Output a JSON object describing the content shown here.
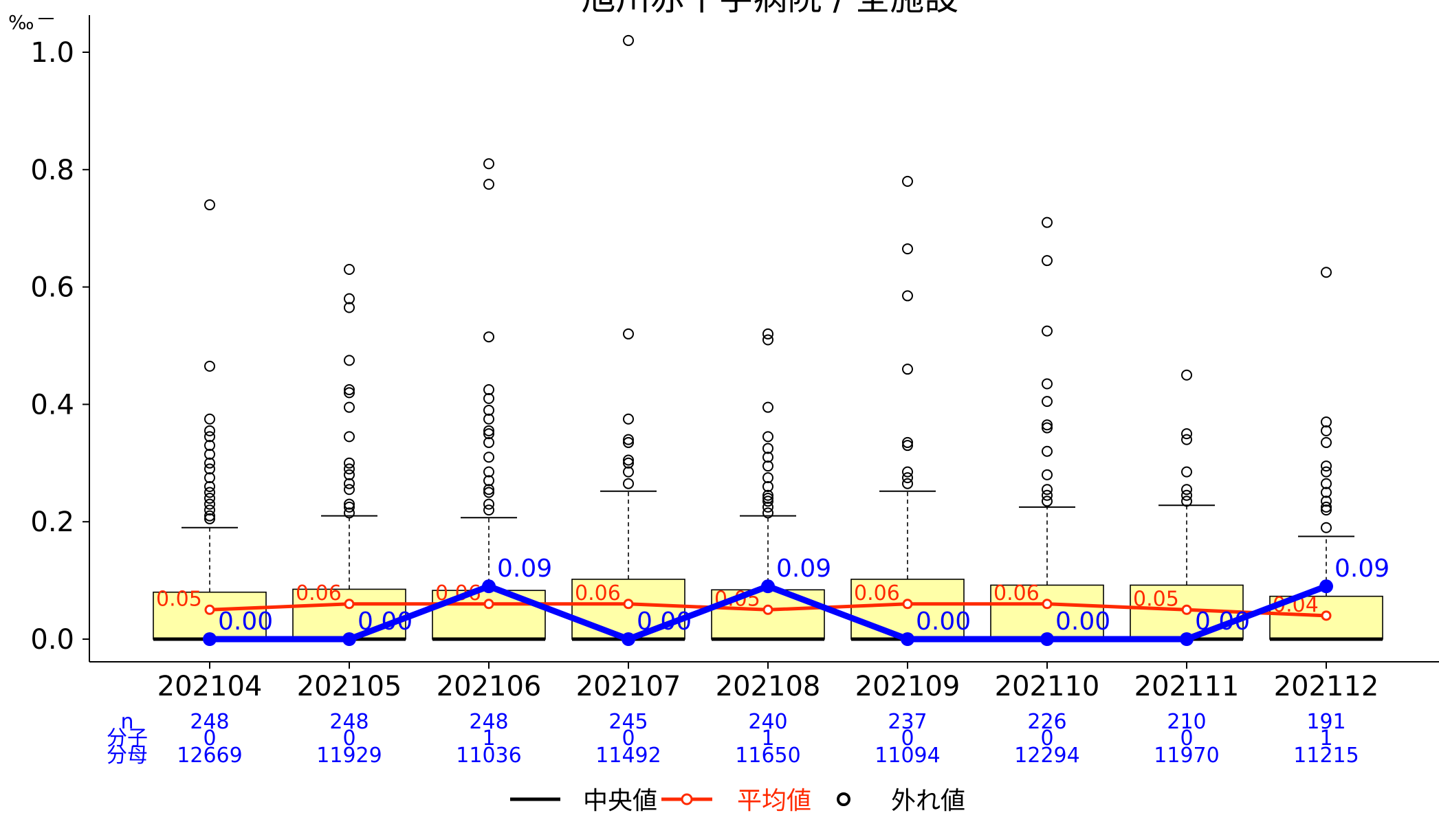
{
  "chart_data": {
    "type": "box",
    "title": "旭川赤十字病院 / 全施設",
    "ylabel": "‰",
    "ylim": [
      -0.03,
      1.06
    ],
    "yticks": [
      "0.0",
      "0.2",
      "0.4",
      "0.6",
      "0.8",
      "1.0"
    ],
    "ytick_values": [
      0.0,
      0.2,
      0.4,
      0.6,
      0.8,
      1.0
    ],
    "categories": [
      "202104",
      "202105",
      "202106",
      "202107",
      "202108",
      "202109",
      "202110",
      "202111",
      "202112"
    ],
    "boxes": [
      {
        "q1": 0,
        "median": 0,
        "q3": 0.08,
        "whisker_high": 0.19
      },
      {
        "q1": 0,
        "median": 0,
        "q3": 0.085,
        "whisker_high": 0.21
      },
      {
        "q1": 0,
        "median": 0,
        "q3": 0.083,
        "whisker_high": 0.207
      },
      {
        "q1": 0,
        "median": 0,
        "q3": 0.102,
        "whisker_high": 0.252
      },
      {
        "q1": 0,
        "median": 0,
        "q3": 0.084,
        "whisker_high": 0.21
      },
      {
        "q1": 0,
        "median": 0,
        "q3": 0.102,
        "whisker_high": 0.252
      },
      {
        "q1": 0,
        "median": 0,
        "q3": 0.092,
        "whisker_high": 0.225
      },
      {
        "q1": 0,
        "median": 0,
        "q3": 0.092,
        "whisker_high": 0.228
      },
      {
        "q1": 0,
        "median": 0,
        "q3": 0.073,
        "whisker_high": 0.175
      }
    ],
    "outliers": [
      [
        0.74,
        0.465,
        0.375,
        0.355,
        0.345,
        0.33,
        0.315,
        0.3,
        0.29,
        0.275,
        0.26,
        0.25,
        0.24,
        0.23,
        0.22,
        0.21,
        0.205
      ],
      [
        0.63,
        0.58,
        0.565,
        0.475,
        0.425,
        0.42,
        0.395,
        0.345,
        0.3,
        0.29,
        0.28,
        0.265,
        0.255,
        0.23,
        0.225,
        0.215
      ],
      [
        0.81,
        0.775,
        0.515,
        0.425,
        0.41,
        0.39,
        0.375,
        0.355,
        0.35,
        0.335,
        0.31,
        0.285,
        0.27,
        0.255,
        0.25,
        0.23,
        0.22
      ],
      [
        1.02,
        0.52,
        0.375,
        0.34,
        0.335,
        0.305,
        0.3,
        0.285,
        0.265
      ],
      [
        0.52,
        0.51,
        0.395,
        0.345,
        0.325,
        0.31,
        0.295,
        0.275,
        0.26,
        0.245,
        0.24,
        0.235,
        0.225,
        0.215
      ],
      [
        0.78,
        0.665,
        0.585,
        0.46,
        0.335,
        0.33,
        0.285,
        0.275,
        0.265
      ],
      [
        0.71,
        0.645,
        0.525,
        0.435,
        0.405,
        0.365,
        0.36,
        0.32,
        0.28,
        0.255,
        0.245,
        0.235
      ],
      [
        0.45,
        0.35,
        0.34,
        0.285,
        0.255,
        0.245,
        0.235
      ],
      [
        0.625,
        0.37,
        0.355,
        0.335,
        0.295,
        0.285,
        0.265,
        0.25,
        0.235,
        0.225,
        0.22,
        0.19
      ]
    ],
    "series": [
      {
        "name": "平均値",
        "color": "#ff2a00",
        "values": [
          0.05,
          0.06,
          0.06,
          0.06,
          0.05,
          0.06,
          0.06,
          0.05,
          0.04
        ],
        "labels": [
          "0.05",
          "0.06",
          "0.06",
          "0.06",
          "0.05",
          "0.06",
          "0.06",
          "0.05",
          "0.04"
        ]
      },
      {
        "color": "#0000ff",
        "values": [
          0.0,
          0.0,
          0.09,
          0.0,
          0.09,
          0.0,
          0.0,
          0.0,
          0.09
        ],
        "labels": [
          "0.00",
          "0.00",
          "0.09",
          "0.00",
          "0.09",
          "0.00",
          "0.00",
          "0.00",
          "0.09"
        ]
      }
    ],
    "table": {
      "row_labels": [
        "n",
        "分子",
        "分母"
      ],
      "n": [
        "248",
        "248",
        "248",
        "245",
        "240",
        "237",
        "226",
        "210",
        "191"
      ],
      "numerator": [
        "0",
        "0",
        "1",
        "0",
        "1",
        "0",
        "0",
        "0",
        "1"
      ],
      "denominator": [
        "12669",
        "11929",
        "11036",
        "11492",
        "11650",
        "11094",
        "12294",
        "11970",
        "11215"
      ]
    },
    "legend": {
      "position": "bottom",
      "items": [
        {
          "label": "中央値",
          "color": "#000000"
        },
        {
          "label": "平均値",
          "color": "#ff2a00"
        },
        {
          "label": "外れ値",
          "color": "#000000"
        }
      ]
    },
    "colors": {
      "box_fill": "#ffffa8",
      "box_stroke": "#000000"
    }
  }
}
